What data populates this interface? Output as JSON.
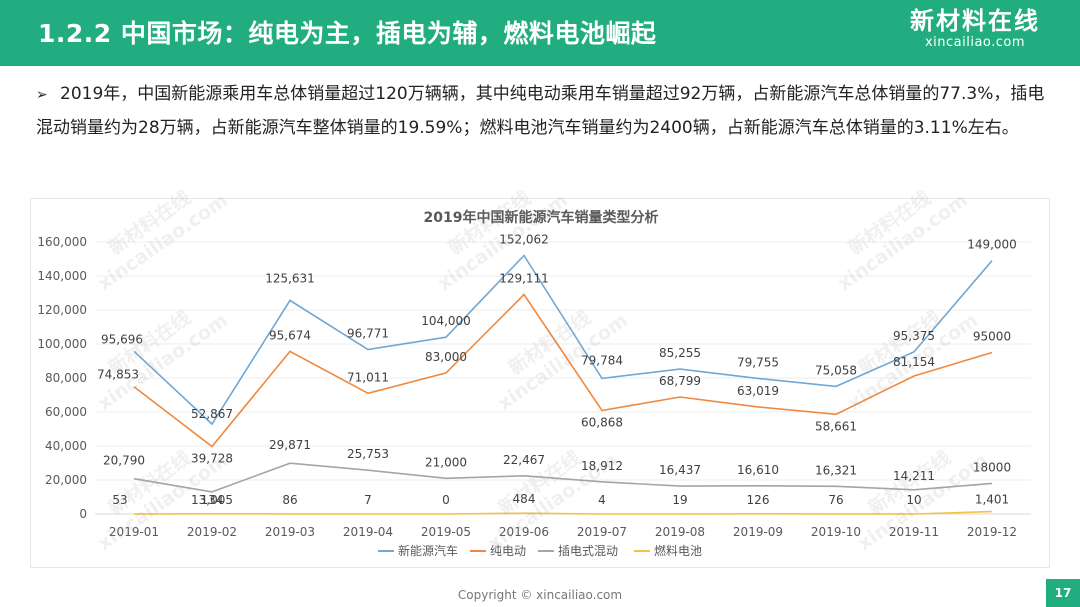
{
  "header": {
    "title": "1.2.2 中国市场：纯电为主，插电为辅，燃料电池崛起",
    "brand_cn": "新材料在线",
    "brand_en": "xincailiao.com"
  },
  "intro": {
    "bullet": "➢",
    "text": "2019年，中国新能源乘用车总体销量超过120万辆辆，其中纯电动乘用车销量超过92万辆，占新能源汽车总体销量的77.3%，插电混动销量约为28万辆，占新能源汽车整体销量的19.59%；燃料电池汽车销量约为2400辆，占新能源汽车总体销量的3.11%左右。"
  },
  "watermark": {
    "cn": "新材料在线",
    "en": "xincailiao.com"
  },
  "chart_data": {
    "type": "line",
    "title": "2019年中国新能源汽车销量类型分析",
    "categories": [
      "2019-01",
      "2019-02",
      "2019-03",
      "2019-04",
      "2019-05",
      "2019-06",
      "2019-07",
      "2019-08",
      "2019-09",
      "2019-10",
      "2019-11",
      "2019-12"
    ],
    "ylim": [
      0,
      160000
    ],
    "yticks": [
      0,
      20000,
      40000,
      60000,
      80000,
      100000,
      120000,
      140000,
      160000
    ],
    "ytick_labels": [
      "0",
      "20,000",
      "40,000",
      "60,000",
      "80,000",
      "100,000",
      "120,000",
      "140,000",
      "160,000"
    ],
    "legend_position": "bottom",
    "series": [
      {
        "name": "新能源汽车",
        "color": "#6fa8d6",
        "values": [
          95696,
          52867,
          125631,
          96771,
          104000,
          152062,
          79784,
          85255,
          79755,
          75058,
          95375,
          149000
        ],
        "labels": [
          "95,696",
          "52,867",
          "125,631",
          "96,771",
          "104,000",
          "152,062",
          "79,784",
          "85,255",
          "79,755",
          "75,058",
          "95,375",
          "149,000"
        ]
      },
      {
        "name": "纯电动",
        "color": "#f0883e",
        "values": [
          74853,
          39728,
          95674,
          71011,
          83000,
          129111,
          60868,
          68799,
          63019,
          58661,
          81154,
          95000
        ],
        "labels": [
          "74,853",
          "39,728",
          "95,674",
          "71,011",
          "83,000",
          "129,111",
          "60,868",
          "68,799",
          "63,019",
          "58,661",
          "81,154",
          "95000"
        ]
      },
      {
        "name": "插电式混动",
        "color": "#a5a5a5",
        "values": [
          20790,
          13005,
          29871,
          25753,
          21000,
          22467,
          18912,
          16437,
          16610,
          16321,
          14211,
          18000
        ],
        "labels": [
          "20,790",
          "13,005",
          "29,871",
          "25,753",
          "21,000",
          "22,467",
          "18,912",
          "16,437",
          "16,610",
          "16,321",
          "14,211",
          "18000"
        ]
      },
      {
        "name": "燃料电池",
        "color": "#f5c242",
        "values": [
          53,
          134,
          86,
          7,
          0,
          484,
          4,
          19,
          126,
          76,
          10,
          1401
        ],
        "labels": [
          "53",
          "134",
          "86",
          "7",
          "0",
          "484",
          "4",
          "19",
          "126",
          "76",
          "10",
          "1,401"
        ]
      }
    ]
  },
  "footer": {
    "copyright": "Copyright © xincailiao.com",
    "page": "17"
  }
}
